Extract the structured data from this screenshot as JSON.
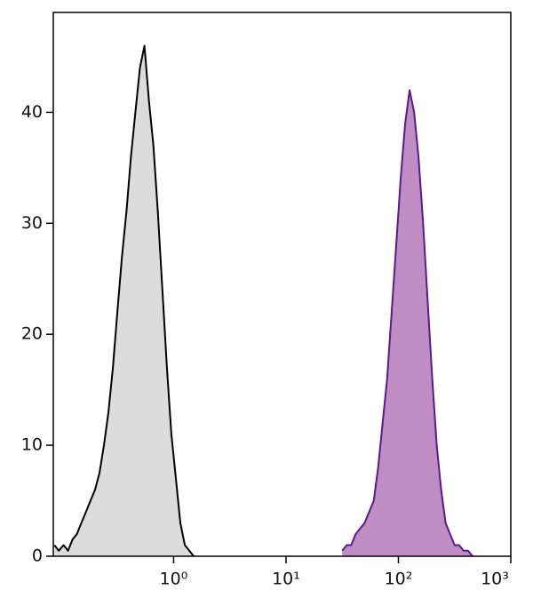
{
  "chart_data": {
    "type": "histogram_overlay",
    "xscale": "log",
    "xlim": [
      0.085,
      1000
    ],
    "ylim": [
      0,
      49
    ],
    "xticks": [
      {
        "value": 1,
        "label": "10⁰"
      },
      {
        "value": 10,
        "label": "10¹"
      },
      {
        "value": 100,
        "label": "10²"
      },
      {
        "value": 1000,
        "label": "10³"
      }
    ],
    "yticks": [
      0,
      10,
      20,
      30,
      40
    ],
    "series": [
      {
        "color": "#000000",
        "fill": "#dcdcdc",
        "x": [
          0.087,
          0.095,
          0.105,
          0.115,
          0.126,
          0.138,
          0.151,
          0.166,
          0.182,
          0.2,
          0.219,
          0.24,
          0.263,
          0.288,
          0.316,
          0.347,
          0.38,
          0.417,
          0.457,
          0.501,
          0.55,
          0.603,
          0.661,
          0.724,
          0.794,
          0.871,
          0.955,
          1.047,
          1.148,
          1.259,
          1.38,
          1.51
        ],
        "values": [
          1,
          0.5,
          1,
          0.5,
          1.5,
          2,
          3,
          4,
          5,
          6,
          7.5,
          10,
          13,
          17,
          22,
          27,
          31,
          36,
          40,
          44,
          46,
          41,
          37,
          31,
          24,
          17,
          11,
          7,
          3,
          1,
          0.5,
          0
        ]
      },
      {
        "color": "#5a1a8a",
        "fill": "#c08cc4",
        "x": [
          31.6,
          34.7,
          38,
          41.7,
          45.7,
          50.1,
          55,
          60.3,
          66.1,
          72.4,
          79.4,
          87.1,
          95.5,
          104.7,
          114.8,
          125.9,
          138,
          151,
          166,
          182,
          200,
          219,
          240,
          263,
          288,
          316,
          347,
          380,
          417,
          457
        ],
        "values": [
          0.5,
          1,
          1,
          2,
          2.5,
          3,
          4,
          5,
          8,
          12,
          16,
          22,
          28,
          34,
          39,
          42,
          40,
          36,
          30,
          23,
          16,
          10,
          6,
          3,
          2,
          1,
          1,
          0.5,
          0.5,
          0
        ]
      }
    ]
  }
}
